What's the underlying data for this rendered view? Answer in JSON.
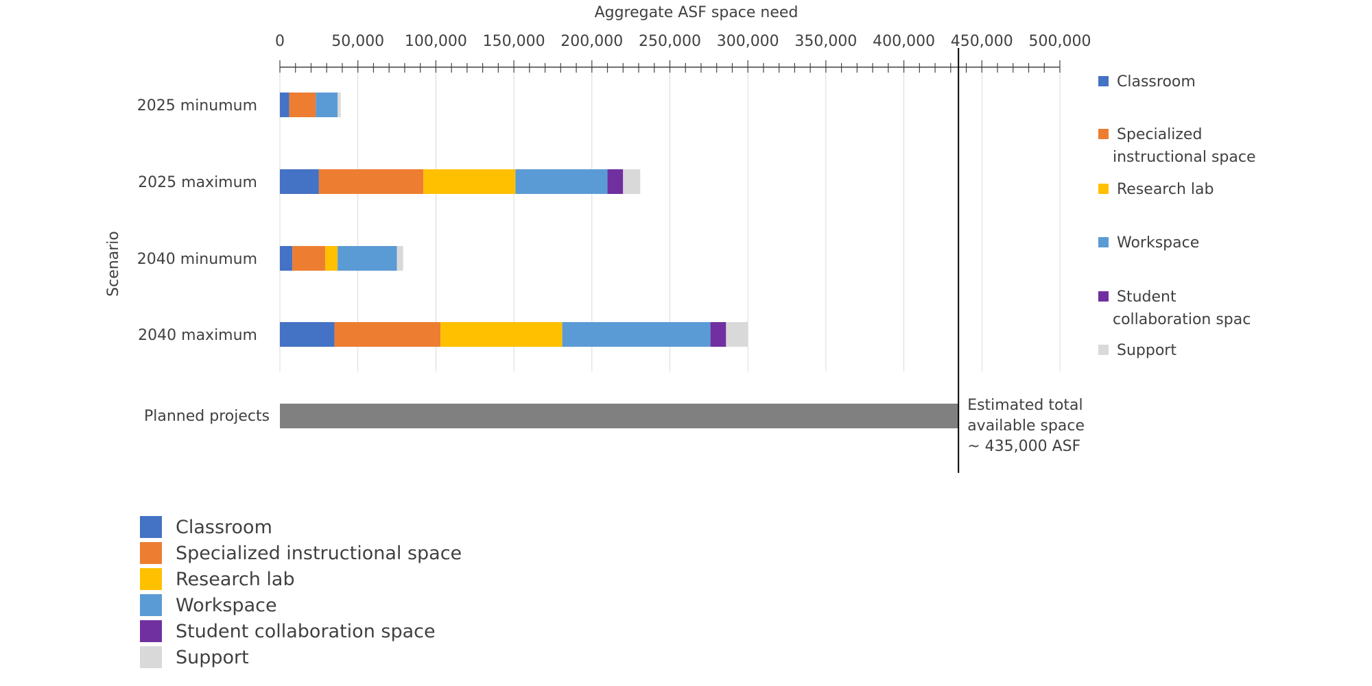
{
  "chart_data": {
    "type": "bar",
    "orientation": "horizontal",
    "stacked": true,
    "title": "",
    "xlabel": "Aggregate ASF space need",
    "ylabel": "Scenario",
    "xlim": [
      0,
      500000
    ],
    "x_ticks": [
      "0",
      "50,000",
      "100,000",
      "150,000",
      "200,000",
      "250,000",
      "300,000",
      "350,000",
      "400,000",
      "450,000",
      "500,000"
    ],
    "x_tick_values": [
      0,
      50000,
      100000,
      150000,
      200000,
      250000,
      300000,
      350000,
      400000,
      450000,
      500000
    ],
    "x_axis_position": "top",
    "grid": true,
    "legend_position": "right",
    "categories": [
      "2025 minumum",
      "2025 maximum",
      "2040 minumum",
      "2040 maximum"
    ],
    "series": [
      {
        "name": "Classroom",
        "color": "#4472C4",
        "values": [
          6000,
          25000,
          8000,
          35000
        ]
      },
      {
        "name": "Specialized instructional space",
        "color": "#ED7D31",
        "values": [
          17000,
          67000,
          21000,
          68000
        ]
      },
      {
        "name": "Research lab",
        "color": "#FFC000",
        "values": [
          0,
          59000,
          8000,
          78000
        ]
      },
      {
        "name": "Workspace",
        "color": "#5B9BD5",
        "values": [
          14000,
          59000,
          38000,
          95000
        ]
      },
      {
        "name": "Student collaboration space",
        "color": "#7030A0",
        "values": [
          0,
          10000,
          0,
          10000
        ]
      },
      {
        "name": "Support",
        "color": "#D9D9D9",
        "values": [
          2000,
          11000,
          4000,
          14000
        ]
      }
    ],
    "legend_right_labels": [
      [
        "Classroom"
      ],
      [
        "Specialized",
        "instructional space"
      ],
      [
        "Research lab"
      ],
      [
        "Workspace"
      ],
      [
        "Student",
        "collaboration spac"
      ],
      [
        "Support"
      ]
    ],
    "reference_bar": {
      "label": "Planned projects",
      "value": 435000,
      "color": "#808080"
    },
    "reference_line": {
      "value": 435000,
      "annotation": [
        "Estimated total",
        "available space",
        "~ 435,000 ASF"
      ]
    }
  }
}
